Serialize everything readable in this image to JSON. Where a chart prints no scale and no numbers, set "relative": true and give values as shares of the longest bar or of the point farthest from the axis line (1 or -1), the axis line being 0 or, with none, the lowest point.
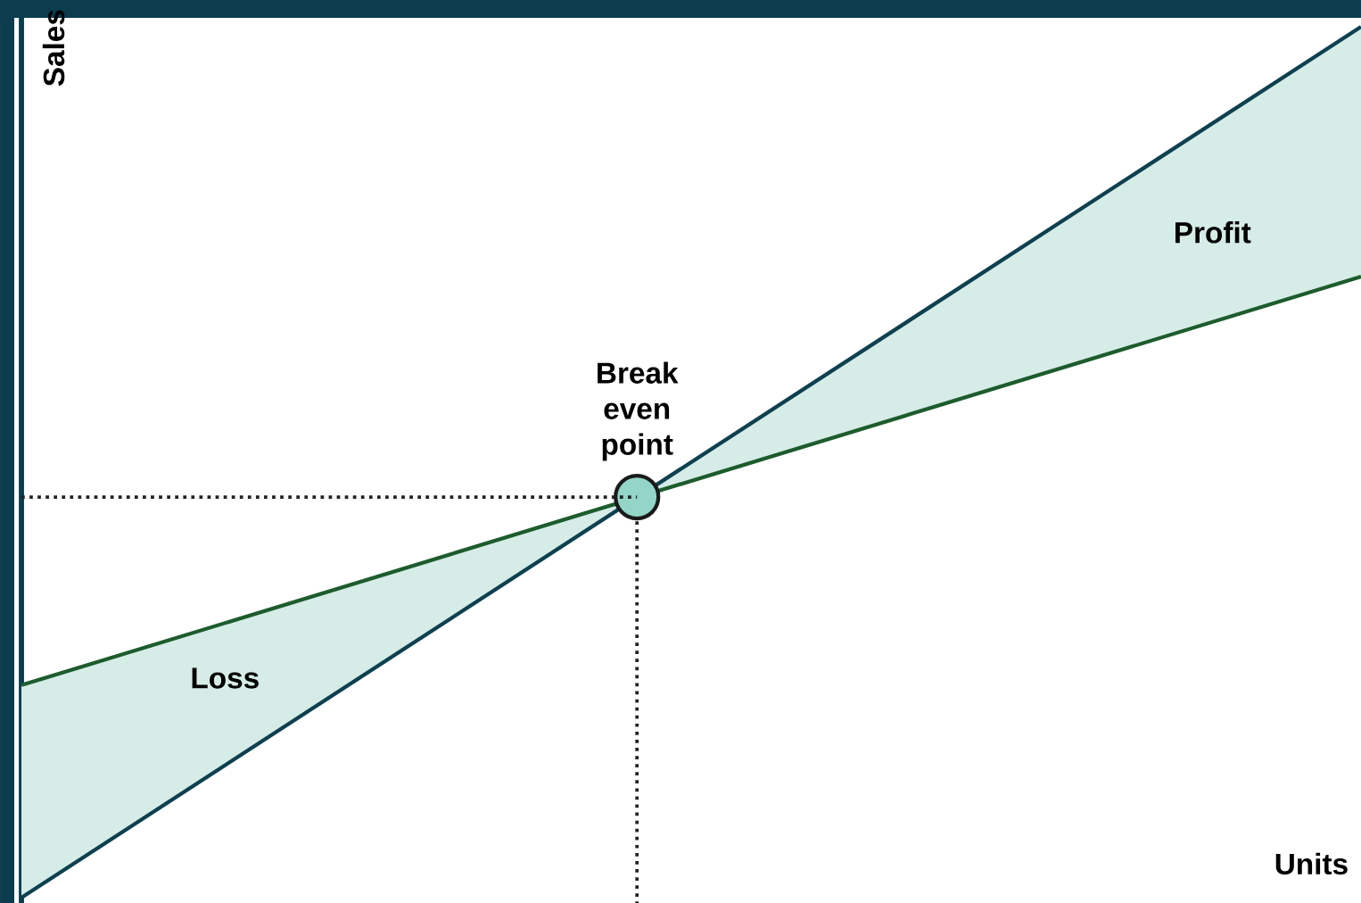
{
  "chart_data": {
    "type": "line",
    "relative": true,
    "marker": "none",
    "line_style": "solid",
    "categories": [
      null,
      null
    ],
    "series": [
      {
        "color": "#0e4050",
        "values": [
          0,
          1
        ]
      },
      {
        "color": "#1d5c2c",
        "values": [
          0.244,
          0.713
        ]
      }
    ],
    "xlabel": "Units",
    "ylabel": "Sales",
    "annotations": [
      "Loss",
      "Profit",
      {
        "text": "Break even point",
        "y": 0.46
      }
    ],
    "ref_lines": [
      {
        "axis": "y",
        "value": 0.46,
        "line_style": "dotted",
        "color": "#222222"
      }
    ]
  }
}
